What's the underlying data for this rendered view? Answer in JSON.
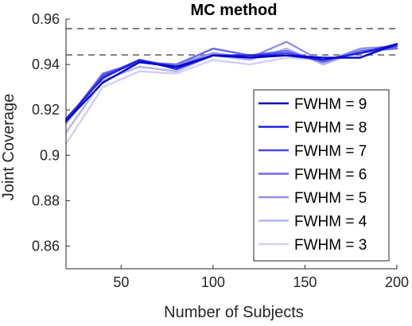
{
  "chart_data": {
    "type": "line",
    "title": "MC method",
    "xlabel": "Number of Subjects",
    "ylabel": "Joint Coverage",
    "xlim": [
      20,
      200
    ],
    "ylim": [
      0.85,
      0.96
    ],
    "xticks": [
      50,
      100,
      150,
      200
    ],
    "xtick_labels": [
      "50",
      "100",
      "150",
      "200"
    ],
    "yticks": [
      0.86,
      0.88,
      0.9,
      0.92,
      0.94,
      0.96
    ],
    "ytick_labels": [
      "0.86",
      "0.88",
      "0.9",
      "0.92",
      "0.94",
      "0.96"
    ],
    "grid": false,
    "legend_position": "bottom-right",
    "reference_lines": [
      0.9558,
      0.9442
    ],
    "reference_line_color": "#808080",
    "x": [
      20,
      40,
      60,
      80,
      100,
      120,
      140,
      160,
      180,
      200
    ],
    "series": [
      {
        "name": "FWHM = 9",
        "color": "#0000cc",
        "values": [
          0.915,
          0.932,
          0.941,
          0.939,
          0.944,
          0.943,
          0.944,
          0.943,
          0.943,
          0.949
        ]
      },
      {
        "name": "FWHM = 8",
        "color": "#1f1fe0",
        "values": [
          0.916,
          0.934,
          0.942,
          0.938,
          0.944,
          0.944,
          0.944,
          0.942,
          0.945,
          0.949
        ]
      },
      {
        "name": "FWHM = 7",
        "color": "#4747e6",
        "values": [
          0.915,
          0.935,
          0.942,
          0.939,
          0.944,
          0.944,
          0.945,
          0.942,
          0.945,
          0.948
        ]
      },
      {
        "name": "FWHM = 6",
        "color": "#6b6bea",
        "values": [
          0.915,
          0.936,
          0.941,
          0.94,
          0.947,
          0.944,
          0.946,
          0.941,
          0.946,
          0.947
        ]
      },
      {
        "name": "FWHM = 5",
        "color": "#8f8fef",
        "values": [
          0.914,
          0.935,
          0.941,
          0.94,
          0.945,
          0.943,
          0.95,
          0.941,
          0.947,
          0.948
        ]
      },
      {
        "name": "FWHM = 4",
        "color": "#b3b3f3",
        "values": [
          0.91,
          0.933,
          0.939,
          0.937,
          0.944,
          0.942,
          0.947,
          0.94,
          0.946,
          0.948
        ]
      },
      {
        "name": "FWHM = 3",
        "color": "#d0d0f7",
        "values": [
          0.905,
          0.93,
          0.937,
          0.936,
          0.942,
          0.94,
          0.943,
          0.942,
          0.945,
          0.947
        ]
      }
    ]
  }
}
